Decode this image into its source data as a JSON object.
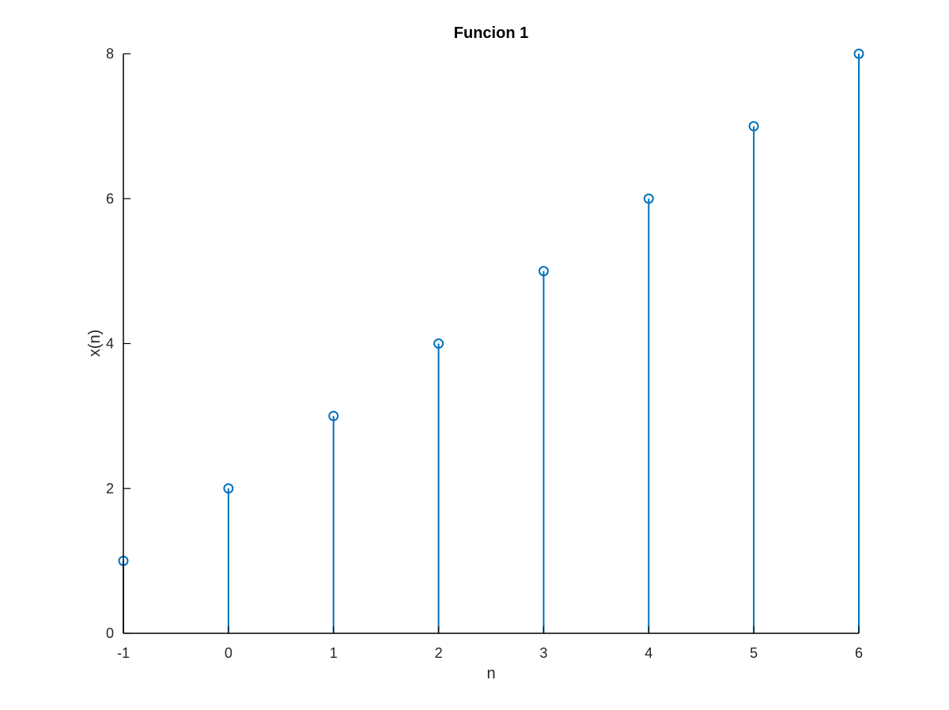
{
  "chart_data": {
    "type": "stem",
    "title": "Funcion 1",
    "xlabel": "n",
    "ylabel": "x(n)",
    "x": [
      -1,
      0,
      1,
      2,
      3,
      4,
      5,
      6
    ],
    "values": [
      1,
      2,
      3,
      4,
      5,
      6,
      7,
      8
    ],
    "xlim": [
      -1,
      6
    ],
    "ylim": [
      0,
      8
    ],
    "xticks": [
      "-1",
      "0",
      "1",
      "2",
      "3",
      "4",
      "5",
      "6"
    ],
    "yticks": [
      "0",
      "2",
      "4",
      "6",
      "8"
    ],
    "grid": false,
    "colors": {
      "series": "#0072BD",
      "axis": "#000000"
    }
  }
}
